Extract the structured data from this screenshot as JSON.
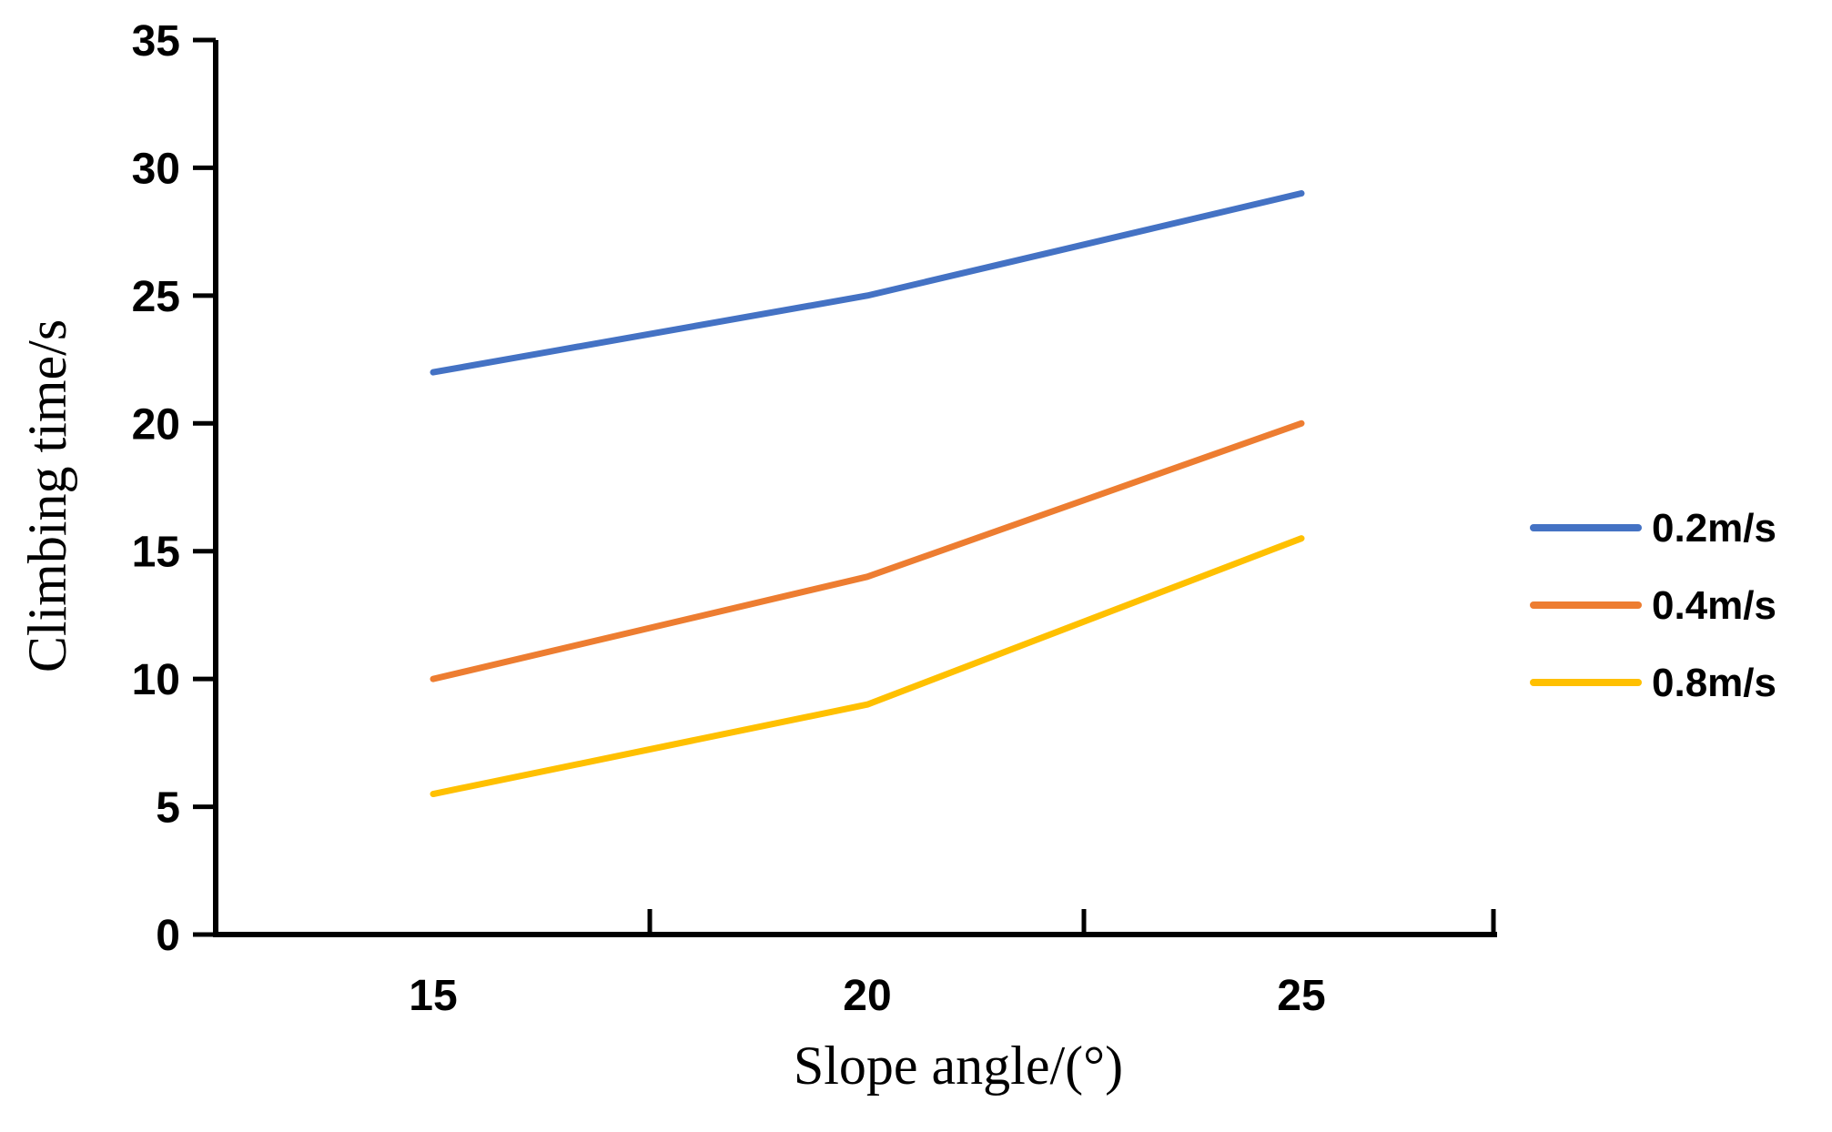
{
  "figure": {
    "description": "line chart of climbing time versus slope angle for three speeds",
    "background_color": "#ffffff"
  },
  "chart_data": {
    "type": "line",
    "title": "",
    "xlabel": "Slope angle/(°)",
    "ylabel": "Climbing time/s",
    "categories": [
      "15",
      "20",
      "25"
    ],
    "series": [
      {
        "name": "0.2m/s",
        "color": "#4472C4",
        "values": [
          22,
          25,
          29
        ]
      },
      {
        "name": "0.4m/s",
        "color": "#ED7D31",
        "values": [
          10,
          14,
          20
        ]
      },
      {
        "name": "0.8m/s",
        "color": "#FFC000",
        "values": [
          5.5,
          9,
          15.5
        ]
      }
    ],
    "y_ticks": [
      0,
      5,
      10,
      15,
      20,
      25,
      30,
      35
    ],
    "ylim": [
      0,
      35
    ],
    "grid": false,
    "legend_position": "right",
    "axis_color": "#000000",
    "text_color": "#000000"
  }
}
